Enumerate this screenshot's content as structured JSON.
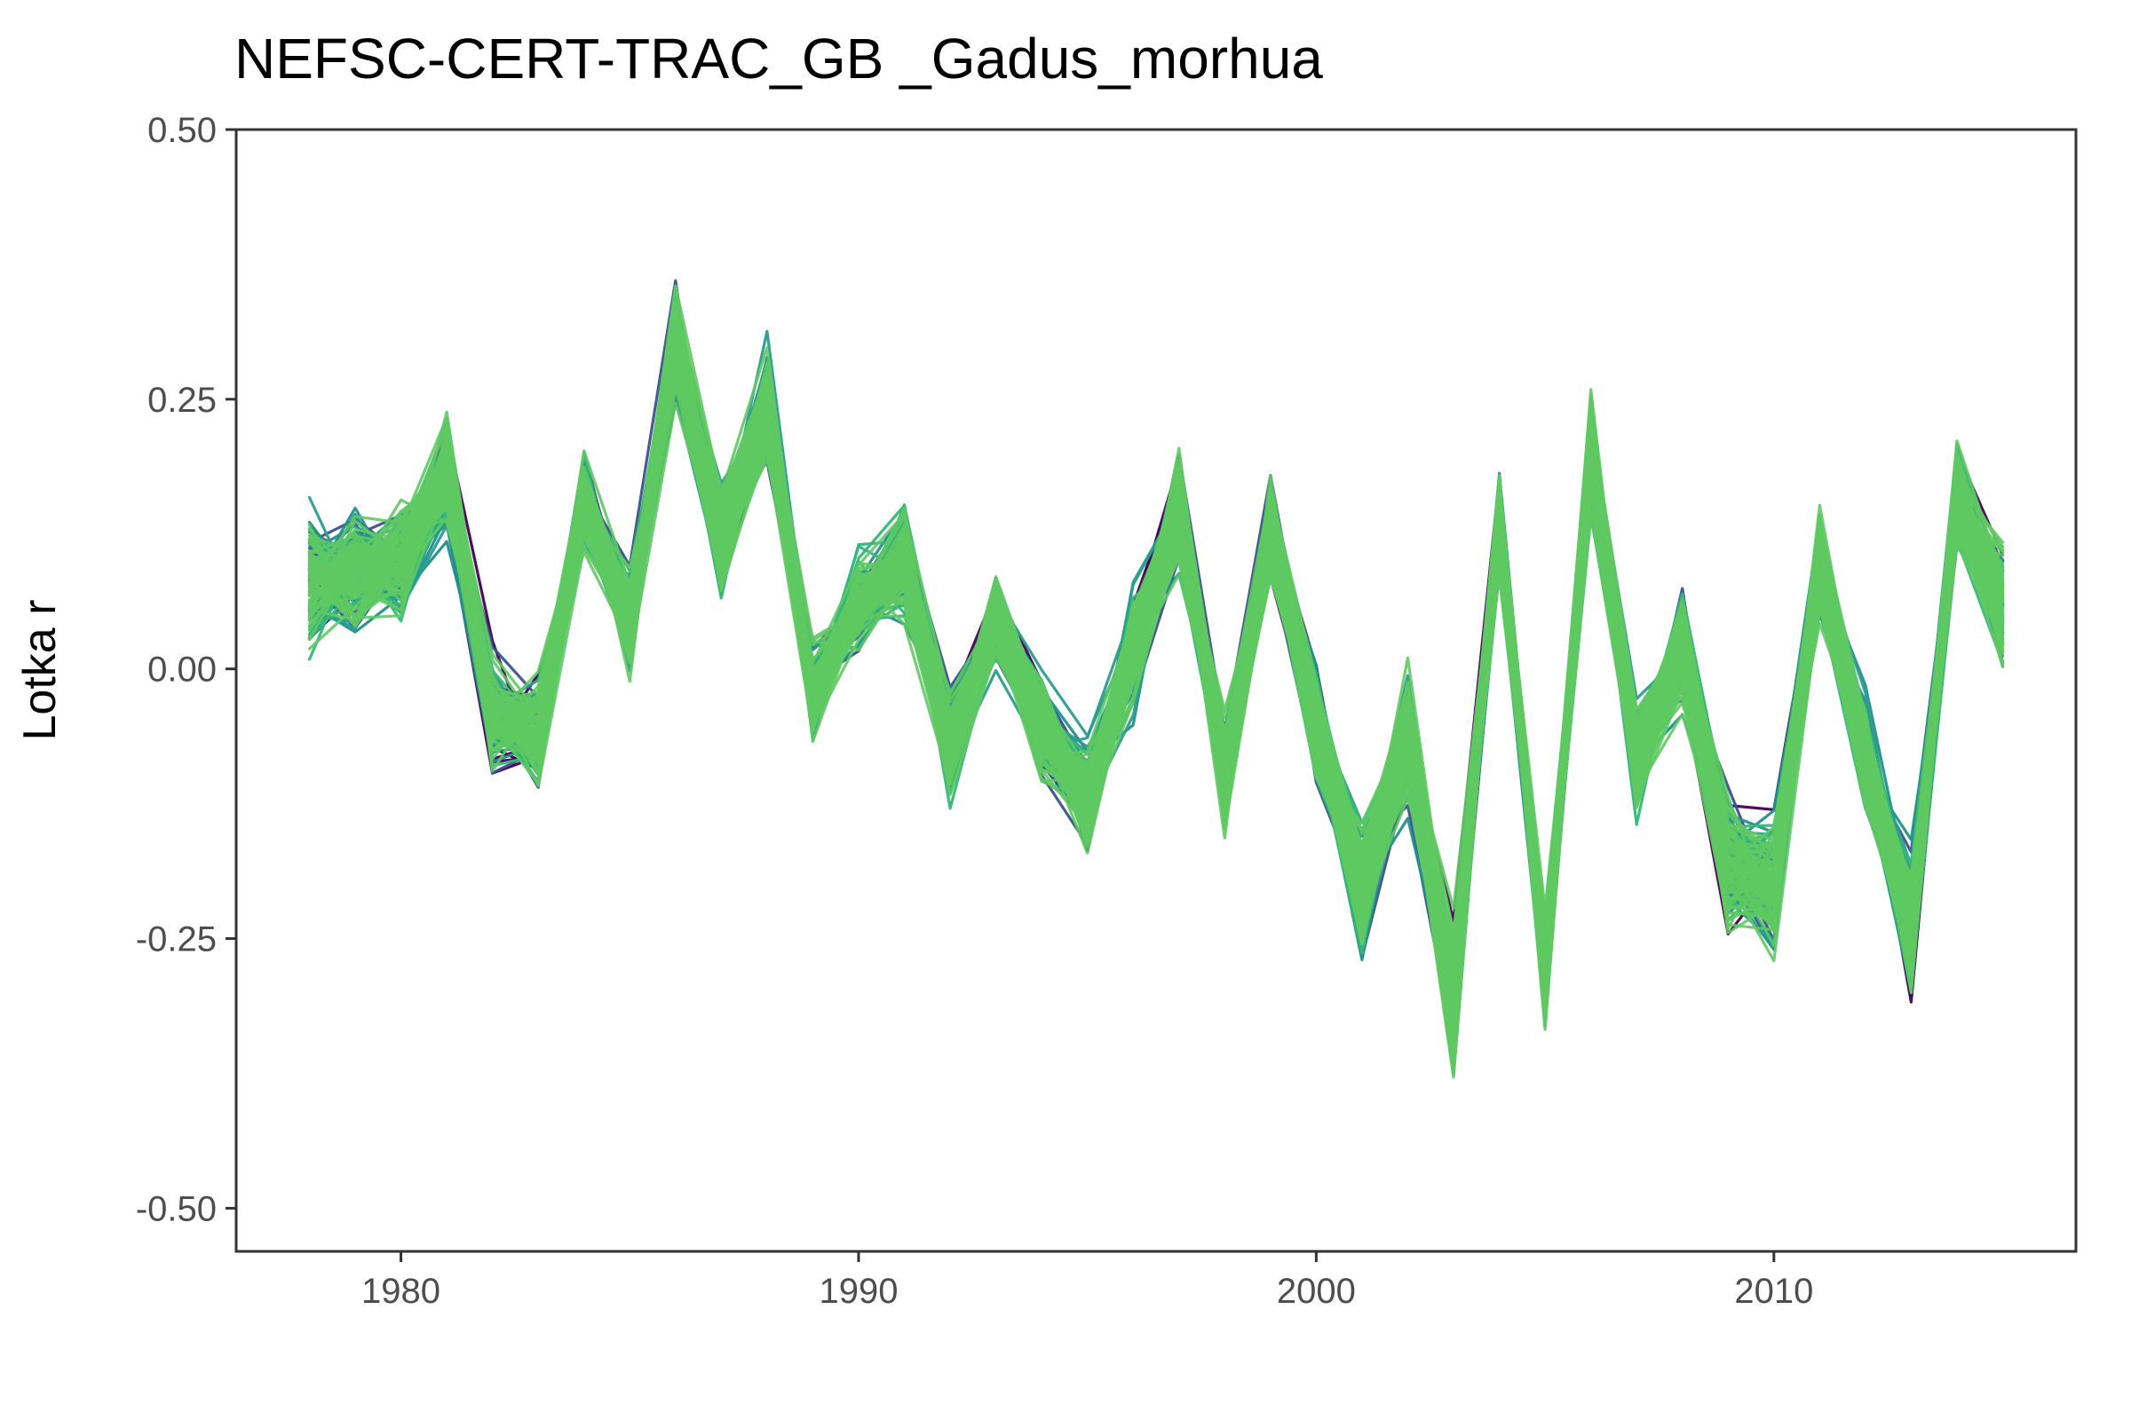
{
  "chart_data": {
    "type": "line",
    "title": "NEFSC-CERT-TRAC_GB _Gadus_morhua",
    "xlabel": "",
    "ylabel": "Lotka r",
    "xlim": [
      1976.4,
      2016.6
    ],
    "ylim": [
      -0.54,
      0.5
    ],
    "grid": false,
    "legend": "none",
    "x_ticks": [
      1980,
      1990,
      2000,
      2010
    ],
    "x_tick_labels": [
      "1980",
      "1990",
      "2000",
      "2010"
    ],
    "y_ticks": [
      0.5,
      0.25,
      0.0,
      -0.25,
      -0.5
    ],
    "y_tick_labels": [
      "0.50",
      "0.25",
      "0.00",
      "-0.25",
      "-0.50"
    ],
    "x": [
      1978,
      1979,
      1980,
      1981,
      1982,
      1983,
      1984,
      1985,
      1986,
      1987,
      1988,
      1989,
      1990,
      1991,
      1992,
      1993,
      1994,
      1995,
      1996,
      1997,
      1998,
      1999,
      2000,
      2001,
      2002,
      2003,
      2004,
      2005,
      2006,
      2007,
      2008,
      2009,
      2010,
      2011,
      2012,
      2013,
      2014,
      2015
    ],
    "mean": [
      0.08,
      0.09,
      0.1,
      0.18,
      -0.04,
      -0.06,
      0.15,
      0.05,
      0.3,
      0.12,
      0.24,
      -0.02,
      0.06,
      0.1,
      -0.07,
      0.05,
      -0.05,
      -0.12,
      0.02,
      0.15,
      -0.1,
      0.13,
      -0.05,
      -0.2,
      -0.06,
      -0.3,
      0.14,
      -0.28,
      0.2,
      -0.08,
      0.02,
      -0.18,
      -0.2,
      0.1,
      -0.08,
      -0.24,
      0.16,
      0.06
    ],
    "spread": [
      0.08,
      0.07,
      0.07,
      0.07,
      0.07,
      0.07,
      0.06,
      0.06,
      0.08,
      0.07,
      0.07,
      0.06,
      0.06,
      0.07,
      0.07,
      0.06,
      0.07,
      0.07,
      0.07,
      0.07,
      0.07,
      0.06,
      0.07,
      0.08,
      0.08,
      0.09,
      0.07,
      0.07,
      0.07,
      0.07,
      0.07,
      0.08,
      0.08,
      0.07,
      0.07,
      0.08,
      0.07,
      0.08
    ],
    "n_series": 180,
    "palette": [
      "#440154",
      "#3b528b",
      "#21908c",
      "#2a9d8f",
      "#35b779",
      "#5ec962"
    ]
  }
}
